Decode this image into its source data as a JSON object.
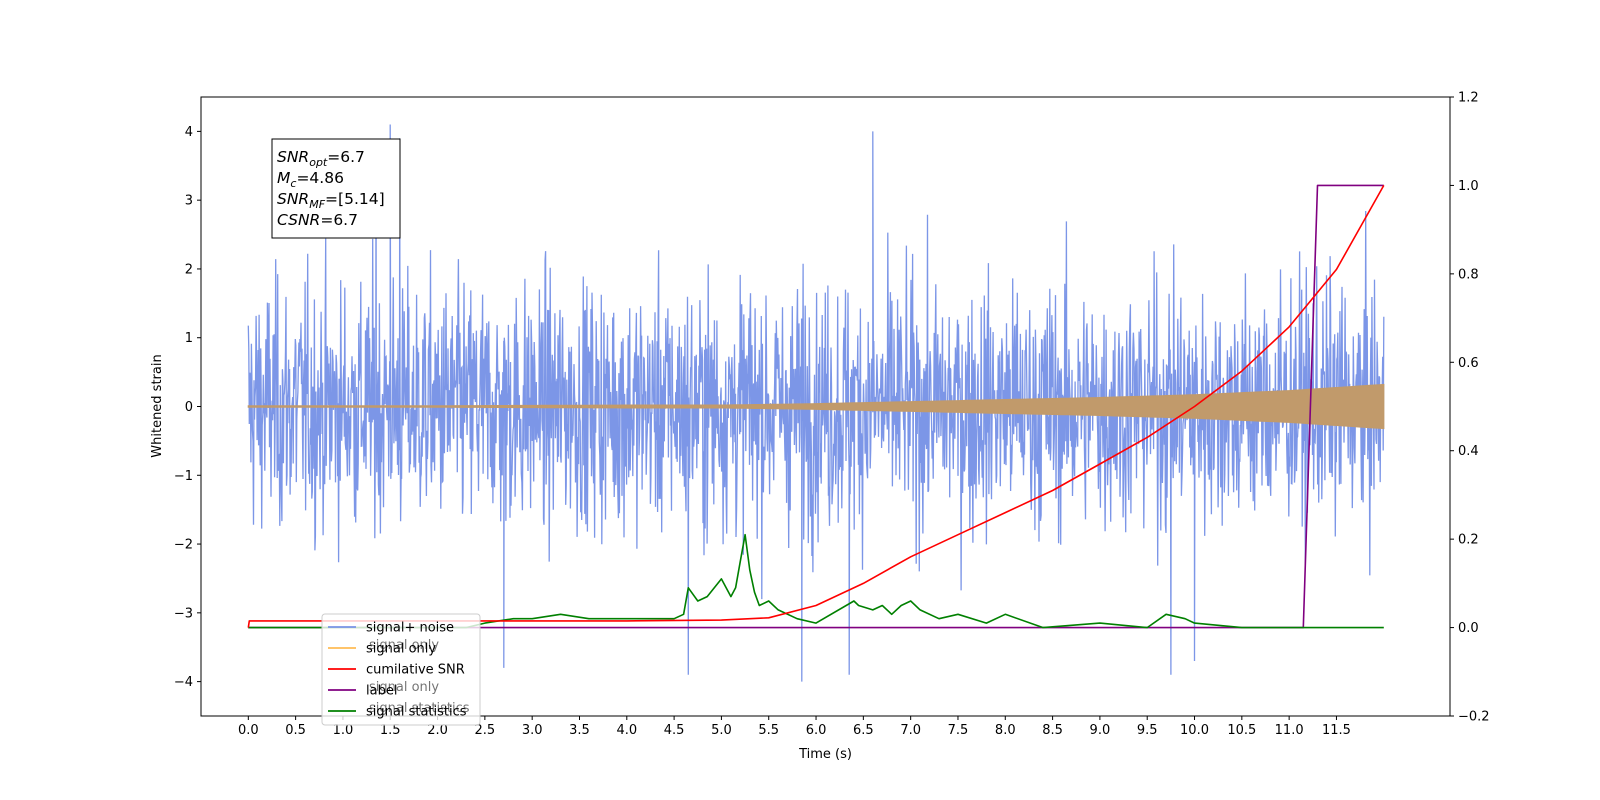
{
  "chart_data": {
    "type": "line",
    "xlabel": "Time (s)",
    "ylabel": "Whitened strain",
    "xlim": [
      -0.5,
      12.7
    ],
    "ylim": [
      -4.5,
      4.5
    ],
    "y2lim": [
      -0.2,
      1.2
    ],
    "x_ticks": [
      "0.0",
      "0.5",
      "1.0",
      "1.5",
      "2.0",
      "2.5",
      "3.0",
      "3.5",
      "4.0",
      "4.5",
      "5.0",
      "5.5",
      "6.0",
      "6.5",
      "7.0",
      "7.5",
      "8.0",
      "8.5",
      "9.0",
      "9.5",
      "10.0",
      "10.5",
      "11.0",
      "11.5"
    ],
    "y_ticks": [
      "−4",
      "−3",
      "−2",
      "−1",
      "0",
      "1",
      "2",
      "3",
      "4"
    ],
    "y2_ticks": [
      "−0.2",
      "0.0",
      "0.2",
      "0.4",
      "0.6",
      "0.8",
      "1.0",
      "1.2"
    ],
    "annotation": {
      "lines": [
        {
          "sym": "SNR",
          "sub": "opt",
          "val": "=6.7"
        },
        {
          "sym": "M",
          "sub": "c",
          "val": "=4.86"
        },
        {
          "sym": "SNR",
          "sub": "MF",
          "val": "=[5.14]"
        },
        {
          "sym": "CSNR",
          "sub": "",
          "val": "=6.7"
        }
      ]
    },
    "legend": {
      "placement": "lower-left",
      "entries": [
        "signal+ noise",
        "signal only",
        "cumilative SNR",
        "label",
        "signal statistics"
      ],
      "occluded_labels": [
        "signal only",
        "signal only",
        "signal statistics"
      ]
    },
    "series": [
      {
        "name": "signal+ noise",
        "axis": "left",
        "color": "#7893e6",
        "kind": "noise",
        "x_range": [
          0.0,
          12.0
        ],
        "typical_envelope": [
          -2.0,
          2.0
        ],
        "max": 4.1,
        "min": -4.0,
        "spikes": [
          [
            1.5,
            4.1
          ],
          [
            1.6,
            3.9
          ],
          [
            1.35,
            3.7
          ],
          [
            6.6,
            4.0
          ],
          [
            4.65,
            -3.9
          ],
          [
            5.85,
            -4.0
          ],
          [
            9.75,
            -3.9
          ],
          [
            2.7,
            -3.8
          ],
          [
            6.35,
            -3.9
          ],
          [
            10.0,
            -3.7
          ]
        ]
      },
      {
        "name": "signal only",
        "axis": "left",
        "color": "#c19a6b",
        "kind": "envelope",
        "x": [
          0,
          2,
          4,
          5,
          6,
          7,
          8,
          9,
          10,
          11,
          12
        ],
        "amplitude": [
          0.01,
          0.01,
          0.02,
          0.02,
          0.04,
          0.07,
          0.1,
          0.13,
          0.17,
          0.23,
          0.32
        ]
      },
      {
        "name": "cumilative SNR",
        "axis": "right",
        "color": "#ff0000",
        "x": [
          0.0,
          0.01,
          2.0,
          4.0,
          5.0,
          5.5,
          6.0,
          6.5,
          7.0,
          7.5,
          8.0,
          8.5,
          9.0,
          9.5,
          10.0,
          10.5,
          11.0,
          11.5,
          12.0
        ],
        "y": [
          0.0,
          0.015,
          0.015,
          0.015,
          0.017,
          0.022,
          0.05,
          0.1,
          0.16,
          0.21,
          0.26,
          0.31,
          0.37,
          0.43,
          0.5,
          0.58,
          0.68,
          0.81,
          1.0
        ]
      },
      {
        "name": "label",
        "axis": "right",
        "color": "#800080",
        "x": [
          0.0,
          11.15,
          11.3,
          12.0
        ],
        "y": [
          0.0,
          0.0,
          1.0,
          1.0
        ]
      },
      {
        "name": "signal statistics",
        "axis": "right",
        "color": "#008000",
        "x": [
          0.0,
          2.3,
          2.5,
          2.8,
          3.0,
          3.3,
          3.6,
          4.0,
          4.5,
          4.6,
          4.65,
          4.75,
          4.85,
          5.0,
          5.1,
          5.15,
          5.2,
          5.25,
          5.3,
          5.35,
          5.4,
          5.5,
          5.6,
          5.8,
          6.0,
          6.4,
          6.45,
          6.6,
          6.7,
          6.8,
          6.9,
          7.0,
          7.1,
          7.3,
          7.5,
          7.8,
          8.0,
          8.4,
          9.0,
          9.5,
          9.7,
          9.9,
          10.0,
          10.5,
          12.0
        ],
        "y": [
          0.0,
          0.0,
          0.01,
          0.02,
          0.02,
          0.03,
          0.02,
          0.02,
          0.02,
          0.03,
          0.09,
          0.06,
          0.07,
          0.11,
          0.07,
          0.09,
          0.15,
          0.21,
          0.13,
          0.08,
          0.05,
          0.06,
          0.04,
          0.02,
          0.01,
          0.06,
          0.05,
          0.04,
          0.05,
          0.03,
          0.05,
          0.06,
          0.04,
          0.02,
          0.03,
          0.01,
          0.03,
          0.0,
          0.01,
          0.0,
          0.03,
          0.02,
          0.01,
          0.0,
          0.0
        ]
      }
    ]
  }
}
